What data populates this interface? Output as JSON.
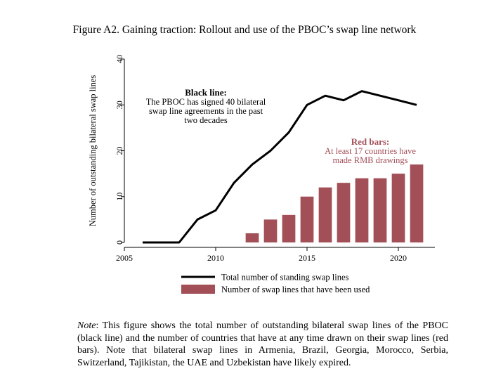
{
  "figure_title": "Figure A2. Gaining traction: Rollout and use of the PBOC’s swap line network",
  "chart_data": {
    "type": "bar",
    "ylabel": "Number of outstanding bilateral swap lines",
    "xlabel": "",
    "xlim": [
      2005,
      2022
    ],
    "ylim": [
      0,
      40
    ],
    "x_ticks": [
      2005,
      2010,
      2015,
      2020
    ],
    "y_ticks": [
      0,
      10,
      20,
      30,
      40
    ],
    "grid": false,
    "legend_position": "bottom",
    "series": [
      {
        "name": "Total number of standing swap lines",
        "type": "line",
        "color": "#000000",
        "x": [
          2006,
          2007,
          2008,
          2009,
          2010,
          2011,
          2012,
          2013,
          2014,
          2015,
          2016,
          2017,
          2018,
          2019,
          2020,
          2021
        ],
        "values": [
          0,
          0,
          0,
          5,
          7,
          13,
          17,
          20,
          24,
          30,
          32,
          31,
          33,
          32,
          31,
          30
        ]
      },
      {
        "name": "Number of swap lines that have been used",
        "type": "bar",
        "color": "#a24f57",
        "x": [
          2012,
          2013,
          2014,
          2015,
          2016,
          2017,
          2018,
          2019,
          2020,
          2021
        ],
        "values": [
          2,
          5,
          6,
          10,
          12,
          13,
          14,
          14,
          15,
          17
        ]
      }
    ],
    "annotations": {
      "black_line": {
        "title": "Black line:",
        "lines": [
          "The PBOC has signed 40 bilateral",
          "swap line agreements in the past",
          "two decades"
        ]
      },
      "red_bars": {
        "title": "Red bars:",
        "lines": [
          "At least 17 countries have",
          "made RMB drawings"
        ]
      }
    }
  },
  "note": {
    "label": "Note",
    "text": ": This figure shows the total number of outstanding bilateral swap lines of the PBOC (black line) and the number of countries that have at any time drawn on their swap lines (red bars). Note that bilateral swap lines in Armenia, Brazil, Georgia, Morocco, Serbia, Switzerland, Tajikistan, the UAE and Uzbekistan have likely expired."
  }
}
